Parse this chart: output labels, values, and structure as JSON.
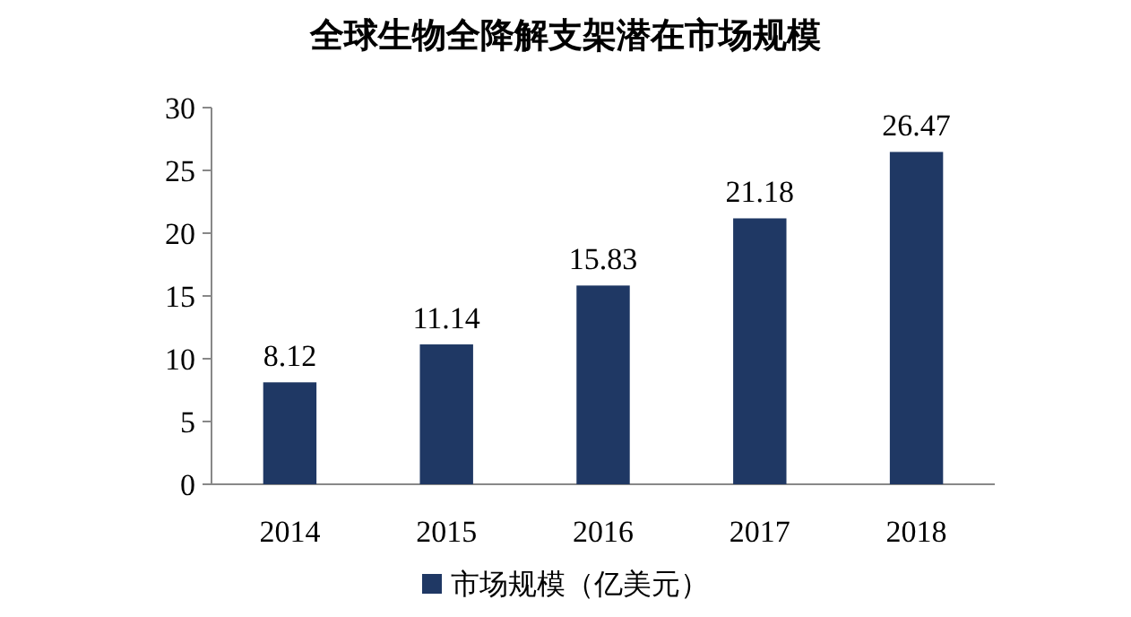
{
  "chart_data": {
    "type": "bar",
    "title": "全球生物全降解支架潜在市场规模",
    "categories": [
      "2014",
      "2015",
      "2016",
      "2017",
      "2018"
    ],
    "series": [
      {
        "name": "市场规模（亿美元）",
        "color": "#1f3864",
        "values": [
          8.12,
          11.14,
          15.83,
          21.18,
          26.47
        ]
      }
    ],
    "ylim": [
      0,
      30
    ],
    "yticks": [
      0,
      5,
      10,
      15,
      20,
      25,
      30
    ],
    "data_labels": true,
    "legend": "bottom",
    "grid": false
  }
}
